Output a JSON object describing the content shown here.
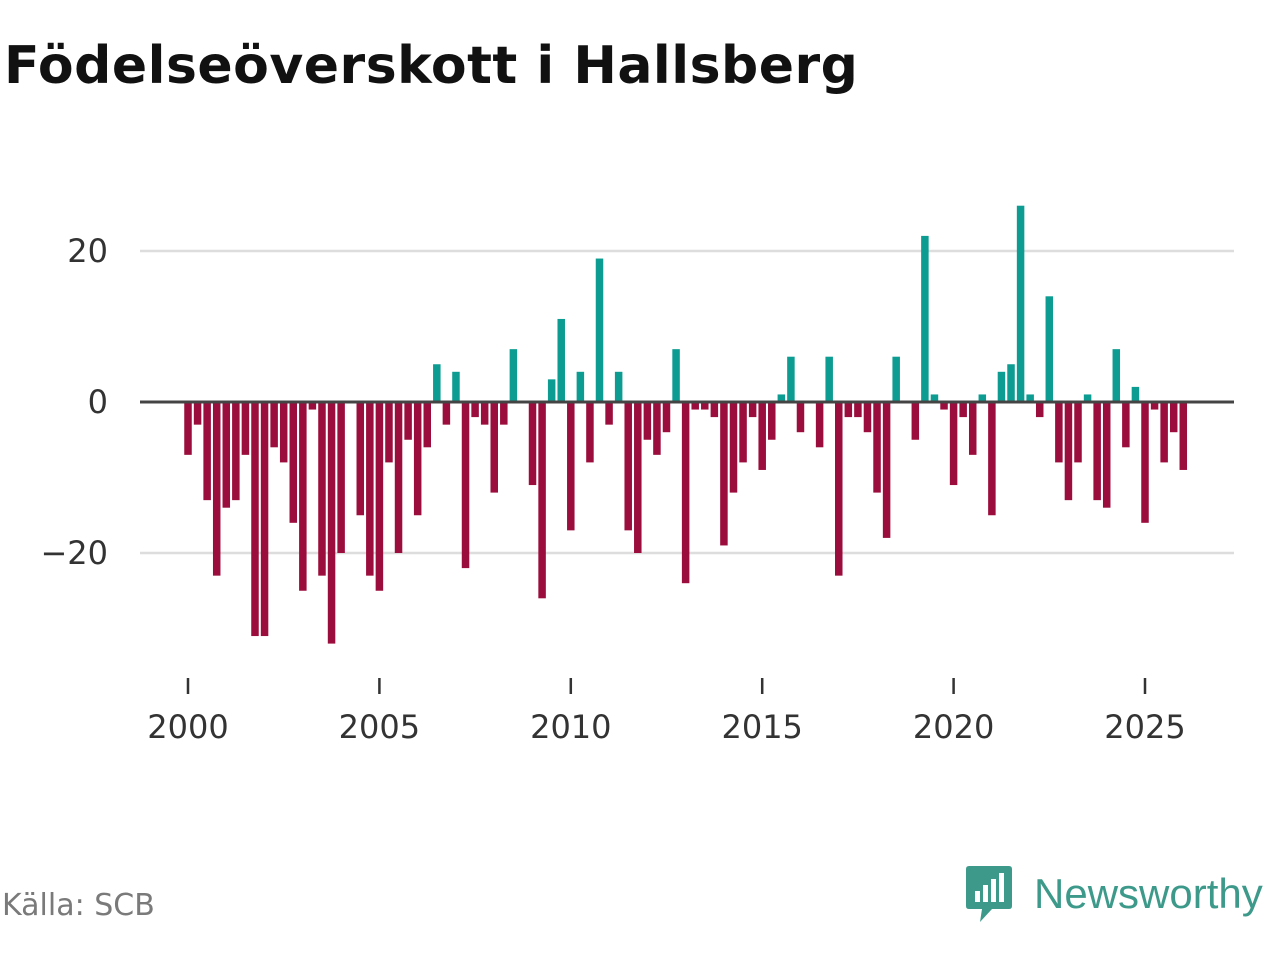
{
  "title": "Födelseöverskott i Hallsberg",
  "source": "Källa: SCB",
  "brand": {
    "name": "Newsworthy",
    "icon": "newsworthy-logo-icon"
  },
  "colors": {
    "positive": "#0d9c91",
    "negative": "#9b0d3c",
    "zero_line": "#444444",
    "grid": "#dddddd"
  },
  "chart_data": {
    "type": "bar",
    "title": "Födelseöverskott i Hallsberg",
    "xlabel": "",
    "ylabel": "",
    "x_start": 2000.0,
    "step": 0.25,
    "ylim": [
      -36,
      30
    ],
    "xlim": [
      1998.6,
      2027.2
    ],
    "y_ticks": [
      20,
      0,
      -20
    ],
    "y_tick_labels": [
      "20",
      "0",
      "−20"
    ],
    "x_ticks": [
      2000,
      2005,
      2010,
      2015,
      2020,
      2025
    ],
    "x_tick_labels": [
      "2000",
      "2005",
      "2010",
      "2015",
      "2020",
      "2025"
    ],
    "values": [
      -7,
      -3,
      -13,
      -23,
      -14,
      -13,
      -7,
      -31,
      -31,
      -6,
      -8,
      -16,
      -25,
      -1,
      -23,
      -32,
      -20,
      0,
      -15,
      -23,
      -25,
      -8,
      -20,
      -5,
      -15,
      -6,
      5,
      -3,
      4,
      -22,
      -2,
      -3,
      -12,
      -3,
      7,
      0,
      -11,
      -26,
      3,
      11,
      -17,
      4,
      -8,
      19,
      -3,
      4,
      -17,
      -20,
      -5,
      -7,
      -4,
      7,
      -24,
      -1,
      -1,
      -2,
      -19,
      -12,
      -8,
      -2,
      -9,
      -5,
      1,
      6,
      -4,
      0,
      -6,
      6,
      -23,
      -2,
      -2,
      -4,
      -12,
      -18,
      6,
      0,
      -5,
      22,
      1,
      -1,
      -11,
      -2,
      -7,
      1,
      -15,
      4,
      5,
      26,
      1,
      -2,
      14,
      -8,
      -13,
      -8,
      1,
      -13,
      -14,
      7,
      -6,
      2,
      -16,
      -1,
      -8,
      -4,
      -9
    ]
  }
}
